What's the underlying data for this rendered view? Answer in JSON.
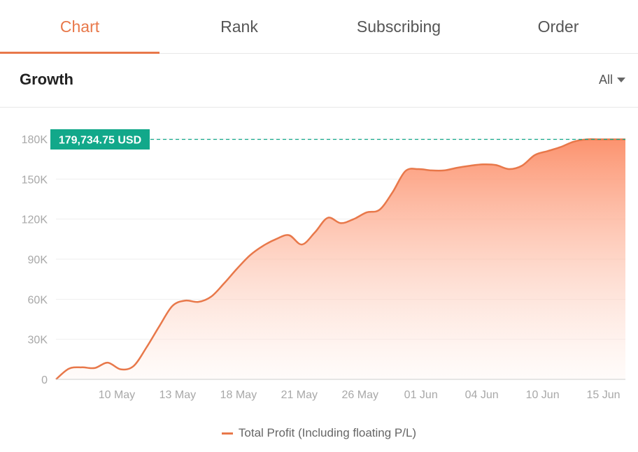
{
  "tabs": [
    {
      "label": "Chart",
      "active": true
    },
    {
      "label": "Rank",
      "active": false
    },
    {
      "label": "Subscribing",
      "active": false
    },
    {
      "label": "Order",
      "active": false
    }
  ],
  "header": {
    "title": "Growth",
    "range_label": "All"
  },
  "colors": {
    "accent": "#e8784a",
    "badge": "#12a88a",
    "grid": "#eeeeee",
    "tick": "#a8a8a8"
  },
  "chart_data": {
    "type": "area",
    "ylim": [
      0,
      180000
    ],
    "yticks": [
      0,
      30000,
      60000,
      90000,
      120000,
      150000,
      180000
    ],
    "ytick_labels": [
      "0",
      "30K",
      "60K",
      "90K",
      "120K",
      "150K",
      "180K"
    ],
    "xlim": [
      0,
      44
    ],
    "xticks": [
      {
        "x": 4.7,
        "label": "10 May"
      },
      {
        "x": 9.4,
        "label": "13 May"
      },
      {
        "x": 14.1,
        "label": "18 May"
      },
      {
        "x": 18.8,
        "label": "21 May"
      },
      {
        "x": 23.5,
        "label": "26 May"
      },
      {
        "x": 28.2,
        "label": "01 Jun"
      },
      {
        "x": 32.9,
        "label": "04 Jun"
      },
      {
        "x": 37.6,
        "label": "10 Jun"
      },
      {
        "x": 42.3,
        "label": "15 Jun"
      }
    ],
    "series": [
      {
        "name": "Total Profit (Including floating P/L)",
        "x": [
          0,
          1,
          2,
          3,
          4,
          5,
          6,
          7,
          8,
          9,
          10,
          11,
          12,
          13,
          14,
          15,
          16,
          17,
          18,
          19,
          20,
          21,
          22,
          23,
          24,
          25,
          26,
          27,
          28,
          29,
          30,
          31,
          32,
          33,
          34,
          35,
          36,
          37,
          38,
          39,
          40,
          41,
          42,
          43,
          44
        ],
        "values": [
          0,
          8000,
          9000,
          8500,
          12500,
          7500,
          10000,
          24000,
          40000,
          55000,
          59000,
          58000,
          62000,
          72000,
          83000,
          93000,
          100000,
          105000,
          108000,
          101000,
          110000,
          121000,
          117000,
          120000,
          125000,
          127000,
          140000,
          156000,
          157500,
          156500,
          156500,
          158500,
          160000,
          161000,
          160500,
          157500,
          160000,
          168000,
          171000,
          174000,
          178000,
          179734.75,
          179734.75,
          179734.75,
          179734.75
        ]
      }
    ],
    "last_value_label": "179,734.75 USD",
    "legend": "bottom-center",
    "grid": true
  }
}
